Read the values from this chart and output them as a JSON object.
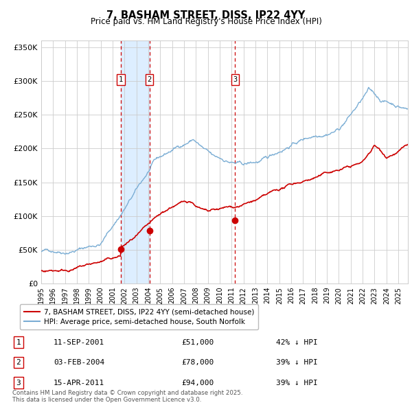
{
  "title": "7, BASHAM STREET, DISS, IP22 4YY",
  "subtitle": "Price paid vs. HM Land Registry's House Price Index (HPI)",
  "legend_line1": "7, BASHAM STREET, DISS, IP22 4YY (semi-detached house)",
  "legend_line2": "HPI: Average price, semi-detached house, South Norfolk",
  "transactions": [
    {
      "num": 1,
      "date": "11-SEP-2001",
      "price": 51000,
      "hpi_pct": "42% ↓ HPI"
    },
    {
      "num": 2,
      "date": "03-FEB-2004",
      "price": 78000,
      "hpi_pct": "39% ↓ HPI"
    },
    {
      "num": 3,
      "date": "15-APR-2011",
      "price": 94000,
      "hpi_pct": "39% ↓ HPI"
    }
  ],
  "transaction_dates_decimal": [
    2001.69,
    2004.09,
    2011.29
  ],
  "footnote": "Contains HM Land Registry data © Crown copyright and database right 2025.\nThis data is licensed under the Open Government Licence v3.0.",
  "red_color": "#cc0000",
  "blue_color": "#7aadd4",
  "shade_color": "#ddeeff",
  "grid_color": "#cccccc",
  "ylim": [
    0,
    360000
  ],
  "xlim_start": 1995.0,
  "xlim_end": 2025.8,
  "yticks": [
    0,
    50000,
    100000,
    150000,
    200000,
    250000,
    300000,
    350000
  ],
  "ytick_labels": [
    "£0",
    "£50K",
    "£100K",
    "£150K",
    "£200K",
    "£250K",
    "£300K",
    "£350K"
  ],
  "xtick_years": [
    1995,
    1996,
    1997,
    1998,
    1999,
    2000,
    2001,
    2002,
    2003,
    2004,
    2005,
    2006,
    2007,
    2008,
    2009,
    2010,
    2011,
    2012,
    2013,
    2014,
    2015,
    2016,
    2017,
    2018,
    2019,
    2020,
    2021,
    2022,
    2023,
    2024,
    2025
  ]
}
